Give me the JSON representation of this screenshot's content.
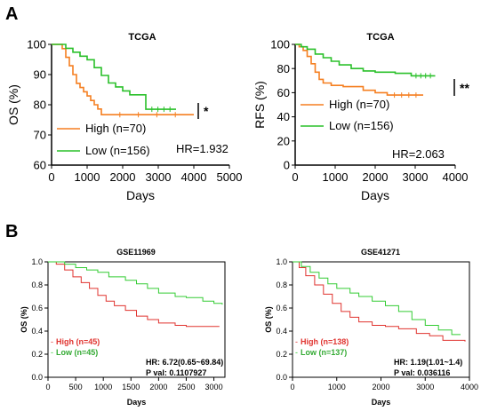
{
  "panels": {
    "a": "A",
    "b": "B"
  },
  "chart_data": [
    {
      "type": "line",
      "title": "TCGA",
      "xlabel": "Days",
      "ylabel": "OS (%)",
      "xlim": [
        0,
        5000
      ],
      "ylim": [
        60,
        100
      ],
      "xticks": [
        0,
        1000,
        2000,
        3000,
        4000,
        5000
      ],
      "yticks": [
        60,
        70,
        80,
        90,
        100
      ],
      "legend_position": "bottom-left",
      "significance": "*",
      "annotation": "HR=1.932",
      "series": [
        {
          "name": "High  (n=70)",
          "color": "#f57f20",
          "points": [
            [
              0,
              100
            ],
            [
              250,
              100
            ],
            [
              300,
              98.6
            ],
            [
              400,
              95.7
            ],
            [
              500,
              92.9
            ],
            [
              600,
              90.0
            ],
            [
              700,
              87.1
            ],
            [
              800,
              85.7
            ],
            [
              900,
              84.3
            ],
            [
              1000,
              82.9
            ],
            [
              1100,
              81.4
            ],
            [
              1200,
              80.0
            ],
            [
              1300,
              78.6
            ],
            [
              1400,
              76.7
            ],
            [
              4000,
              76.7
            ]
          ]
        },
        {
          "name": "Low  (n=156)",
          "color": "#2ac02a",
          "points": [
            [
              0,
              100
            ],
            [
              300,
              100
            ],
            [
              400,
              98.7
            ],
            [
              600,
              97.4
            ],
            [
              800,
              96.1
            ],
            [
              1000,
              94.9
            ],
            [
              1200,
              92.3
            ],
            [
              1400,
              89.7
            ],
            [
              1600,
              87.2
            ],
            [
              1800,
              85.9
            ],
            [
              2000,
              84.6
            ],
            [
              2200,
              83.3
            ],
            [
              2500,
              83.3
            ],
            [
              2650,
              78.5
            ],
            [
              3500,
              78.5
            ]
          ]
        }
      ]
    },
    {
      "type": "line",
      "title": "TCGA",
      "xlabel": "Days",
      "ylabel": "RFS (%)",
      "xlim": [
        0,
        4000
      ],
      "ylim": [
        0,
        100
      ],
      "xticks": [
        0,
        1000,
        2000,
        3000,
        4000
      ],
      "yticks": [
        0,
        20,
        40,
        60,
        80,
        100
      ],
      "legend_position": "bottom-left",
      "significance": "**",
      "annotation": "HR=2.063",
      "series": [
        {
          "name": "High  (n=70)",
          "color": "#f57f20",
          "points": [
            [
              0,
              100
            ],
            [
              100,
              98
            ],
            [
              200,
              95
            ],
            [
              300,
              90
            ],
            [
              400,
              84
            ],
            [
              500,
              77
            ],
            [
              600,
              71
            ],
            [
              700,
              68
            ],
            [
              900,
              66
            ],
            [
              1200,
              65
            ],
            [
              1700,
              62
            ],
            [
              2000,
              60
            ],
            [
              2300,
              58
            ],
            [
              3200,
              58
            ]
          ]
        },
        {
          "name": "Low  (n=156)",
          "color": "#2ac02a",
          "points": [
            [
              0,
              100
            ],
            [
              150,
              98
            ],
            [
              300,
              96
            ],
            [
              500,
              92
            ],
            [
              700,
              89
            ],
            [
              900,
              86
            ],
            [
              1100,
              83
            ],
            [
              1400,
              80
            ],
            [
              1700,
              78
            ],
            [
              2000,
              77
            ],
            [
              2500,
              76
            ],
            [
              2900,
              74
            ],
            [
              3500,
              74
            ]
          ]
        }
      ]
    },
    {
      "type": "line",
      "title": "GSE11969",
      "xlabel": "Days",
      "ylabel": "OS (%)",
      "xlim": [
        0,
        3200
      ],
      "ylim": [
        0,
        1.0
      ],
      "xticks": [
        0,
        500,
        1000,
        1500,
        2000,
        2500,
        3000
      ],
      "yticks": [
        0.0,
        0.2,
        0.4,
        0.6,
        0.8,
        1.0
      ],
      "legend_position": "bottom-left",
      "annotation_lines": [
        "HR: 6.72(0.65~69.84)",
        "P val: 0.1107927"
      ],
      "series": [
        {
          "name": "High (n=45)",
          "color": "#e0332f",
          "points": [
            [
              0,
              1.0
            ],
            [
              150,
              0.98
            ],
            [
              300,
              0.93
            ],
            [
              450,
              0.87
            ],
            [
              600,
              0.82
            ],
            [
              750,
              0.77
            ],
            [
              900,
              0.71
            ],
            [
              1050,
              0.66
            ],
            [
              1200,
              0.62
            ],
            [
              1400,
              0.58
            ],
            [
              1600,
              0.53
            ],
            [
              1800,
              0.5
            ],
            [
              2000,
              0.47
            ],
            [
              2300,
              0.45
            ],
            [
              2500,
              0.44
            ],
            [
              3100,
              0.44
            ]
          ]
        },
        {
          "name": "Low (n=45)",
          "color": "#33cc33",
          "points": [
            [
              0,
              1.0
            ],
            [
              300,
              0.98
            ],
            [
              500,
              0.95
            ],
            [
              700,
              0.93
            ],
            [
              900,
              0.91
            ],
            [
              1100,
              0.87
            ],
            [
              1400,
              0.84
            ],
            [
              1600,
              0.81
            ],
            [
              1800,
              0.77
            ],
            [
              2000,
              0.73
            ],
            [
              2300,
              0.7
            ],
            [
              2500,
              0.69
            ],
            [
              2800,
              0.66
            ],
            [
              3000,
              0.64
            ],
            [
              3150,
              0.63
            ]
          ]
        }
      ]
    },
    {
      "type": "line",
      "title": "GSE41271",
      "xlabel": "Days",
      "ylabel": "OS (%)",
      "xlim": [
        0,
        4000
      ],
      "ylim": [
        0,
        1.0
      ],
      "xticks": [
        0,
        1000,
        2000,
        3000,
        4000
      ],
      "yticks": [
        0.0,
        0.2,
        0.4,
        0.6,
        0.8,
        1.0
      ],
      "legend_position": "bottom-left",
      "annotation_lines": [
        "HR: 1.19(1.01~1.4)",
        "P val: 0.036116"
      ],
      "series": [
        {
          "name": "High (n=138)",
          "color": "#e0332f",
          "points": [
            [
              0,
              1.0
            ],
            [
              150,
              0.95
            ],
            [
              300,
              0.88
            ],
            [
              500,
              0.8
            ],
            [
              700,
              0.72
            ],
            [
              900,
              0.64
            ],
            [
              1100,
              0.57
            ],
            [
              1300,
              0.52
            ],
            [
              1500,
              0.48
            ],
            [
              1800,
              0.45
            ],
            [
              2100,
              0.44
            ],
            [
              2400,
              0.42
            ],
            [
              2800,
              0.38
            ],
            [
              3100,
              0.36
            ],
            [
              3400,
              0.32
            ],
            [
              3900,
              0.31
            ]
          ]
        },
        {
          "name": "Low (n=137)",
          "color": "#33cc33",
          "points": [
            [
              0,
              1.0
            ],
            [
              200,
              0.96
            ],
            [
              400,
              0.91
            ],
            [
              600,
              0.86
            ],
            [
              800,
              0.81
            ],
            [
              1000,
              0.77
            ],
            [
              1300,
              0.73
            ],
            [
              1500,
              0.7
            ],
            [
              1800,
              0.66
            ],
            [
              2100,
              0.62
            ],
            [
              2400,
              0.57
            ],
            [
              2700,
              0.5
            ],
            [
              3000,
              0.45
            ],
            [
              3300,
              0.41
            ],
            [
              3600,
              0.37
            ],
            [
              3800,
              0.37
            ]
          ]
        }
      ]
    }
  ]
}
